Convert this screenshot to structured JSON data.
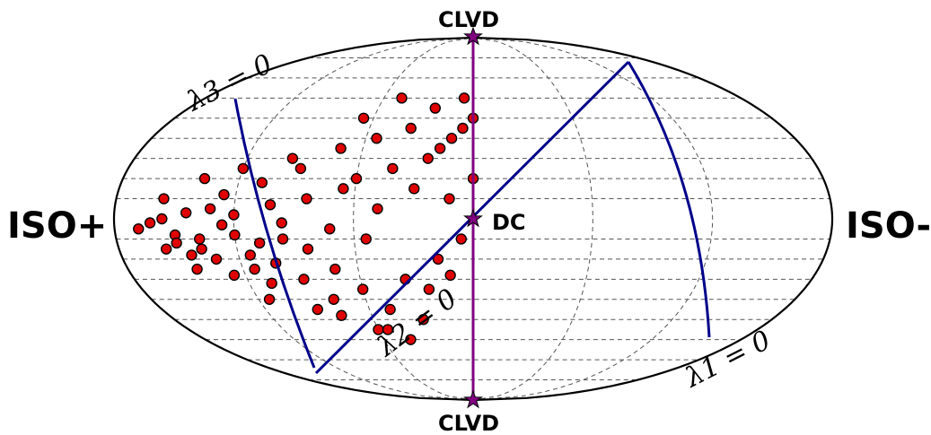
{
  "chart_data": {
    "type": "scatter",
    "title": "",
    "projection": "lune",
    "labels": {
      "iso_plus": "ISO+",
      "iso_minus": "ISO-",
      "clvd_top": "CLVD",
      "clvd_bottom": "CLVD",
      "dc": "DC",
      "lambda1": "λ1 = 0",
      "lambda3": "λ3 = 0",
      "lambda2": "λ2 = 0"
    },
    "colors": {
      "markers": "#e00000",
      "marker_edge": "#000000",
      "lines": "#00008b",
      "clvd_line": "#800080",
      "label_text": "#800080",
      "grid": "#555555"
    },
    "grid": true,
    "series": [
      {
        "values": [
          [
            -28,
            -5
          ],
          [
            -27,
            -2
          ],
          [
            -25,
            -8
          ],
          [
            -26,
            0
          ],
          [
            -24,
            3
          ],
          [
            -25,
            -12
          ],
          [
            -23,
            -15
          ],
          [
            -22,
            5
          ],
          [
            -23,
            -10
          ],
          [
            -21,
            -3
          ],
          [
            -22,
            -20
          ],
          [
            -20,
            -8
          ],
          [
            -20,
            2
          ],
          [
            -19,
            -18
          ],
          [
            -18,
            -12
          ],
          [
            -17,
            7
          ],
          [
            -19,
            -25
          ],
          [
            -16,
            -2
          ],
          [
            -17,
            -22
          ],
          [
            -15,
            -30
          ],
          [
            -16,
            -10
          ],
          [
            -14,
            10
          ],
          [
            -14,
            -15
          ],
          [
            -13,
            -40
          ],
          [
            -12,
            -25
          ],
          [
            -12,
            -5
          ],
          [
            -11,
            15
          ],
          [
            -10,
            -35
          ],
          [
            -10,
            20
          ],
          [
            -9,
            -10
          ],
          [
            -8,
            -45
          ],
          [
            -8,
            5
          ],
          [
            -7,
            25
          ],
          [
            -6,
            -30
          ],
          [
            -5,
            15
          ],
          [
            -5,
            -50
          ],
          [
            -4,
            30
          ],
          [
            -3,
            -20
          ],
          [
            -3,
            35
          ],
          [
            -2,
            10
          ],
          [
            -2,
            40
          ],
          [
            -1,
            -10
          ],
          [
            -1,
            45
          ],
          [
            0,
            20
          ],
          [
            0,
            50
          ],
          [
            -6,
            45
          ],
          [
            -9,
            40
          ],
          [
            -12,
            35
          ],
          [
            -15,
            25
          ],
          [
            -18,
            18
          ],
          [
            -21,
            12
          ],
          [
            -24,
            -18
          ],
          [
            -21,
            -28
          ],
          [
            -18,
            -32
          ],
          [
            -13,
            -48
          ],
          [
            -10,
            -55
          ],
          [
            -7,
            -60
          ],
          [
            -4,
            -35
          ],
          [
            -2,
            -28
          ],
          [
            -20,
            25
          ],
          [
            -23,
            20
          ],
          [
            -26,
            10
          ],
          [
            -26,
            -15
          ],
          [
            -24,
            -25
          ],
          [
            -16,
            30
          ],
          [
            -11,
            50
          ],
          [
            -8,
            60
          ],
          [
            -4,
            55
          ],
          [
            -1,
            60
          ],
          [
            -19,
            -40
          ],
          [
            -15,
            -45
          ],
          [
            -9,
            -55
          ]
        ]
      }
    ]
  }
}
